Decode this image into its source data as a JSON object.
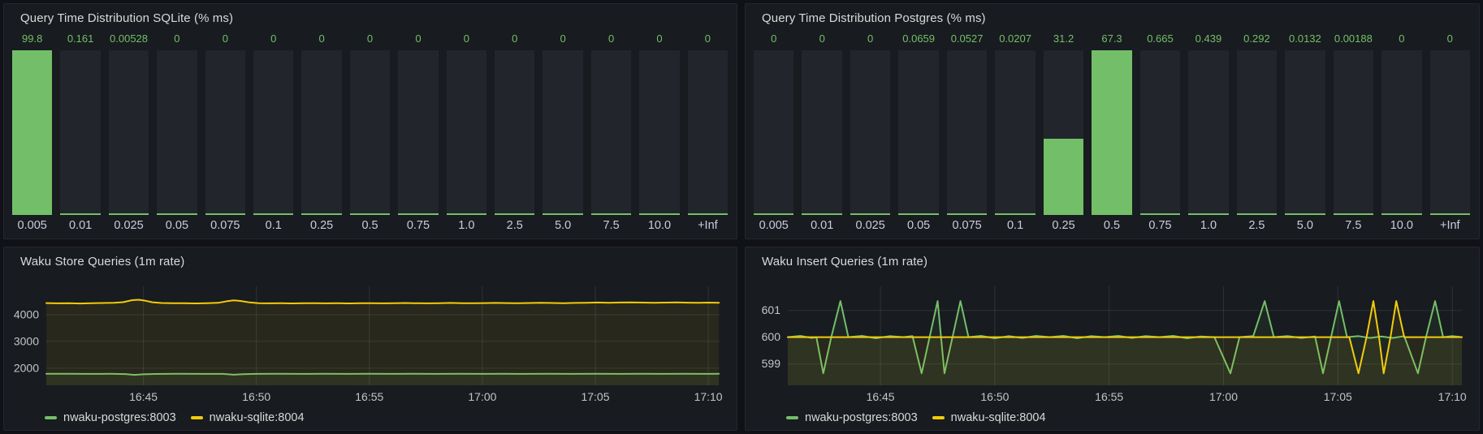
{
  "theme": {
    "page_bg": "#111217",
    "panel_bg": "#181b1f",
    "panel_border": "#25272e",
    "title_color": "#d8d9da",
    "axis_text": "#c3c4ca",
    "grid_color": "rgba(204,204,220,0.12)",
    "green": "#73bf69",
    "yellow": "#f2cc0c",
    "bar_track": "#22252b"
  },
  "chart_data": [
    {
      "type": "bar",
      "title": "Query Time Distribution SQLite (% ms)",
      "bar_color": "#73bf69",
      "scale": "relative-to-max-value",
      "categories": [
        "0.005",
        "0.01",
        "0.025",
        "0.05",
        "0.075",
        "0.1",
        "0.25",
        "0.5",
        "0.75",
        "1.0",
        "2.5",
        "5.0",
        "7.5",
        "10.0",
        "+Inf"
      ],
      "values": [
        99.8,
        0.161,
        0.00528,
        0,
        0,
        0,
        0,
        0,
        0,
        0,
        0,
        0,
        0,
        0,
        0
      ],
      "value_labels": [
        "99.8",
        "0.161",
        "0.00528",
        "0",
        "0",
        "0",
        "0",
        "0",
        "0",
        "0",
        "0",
        "0",
        "0",
        "0",
        "0"
      ]
    },
    {
      "type": "bar",
      "title": "Query Time Distribution Postgres (% ms)",
      "bar_color": "#73bf69",
      "scale": "relative-to-max-value",
      "categories": [
        "0.005",
        "0.01",
        "0.025",
        "0.05",
        "0.075",
        "0.1",
        "0.25",
        "0.5",
        "0.75",
        "1.0",
        "2.5",
        "5.0",
        "7.5",
        "10.0",
        "+Inf"
      ],
      "values": [
        0,
        0,
        0,
        0.0659,
        0.0527,
        0.0207,
        31.2,
        67.3,
        0.665,
        0.439,
        0.292,
        0.0132,
        0.00188,
        0,
        0
      ],
      "value_labels": [
        "0",
        "0",
        "0",
        "0.0659",
        "0.0527",
        "0.0207",
        "31.2",
        "67.3",
        "0.665",
        "0.439",
        "0.292",
        "0.0132",
        "0.00188",
        "0",
        "0"
      ]
    },
    {
      "type": "line",
      "title": "Waku Store Queries (1m rate)",
      "x_unit": "minutes after 16:40",
      "xlim": [
        0.7,
        30.5
      ],
      "ylim": [
        1360,
        5060
      ],
      "grid": true,
      "legend_position": "bottom-left",
      "y_ticks": [
        4000,
        3000,
        2000
      ],
      "x_ticks": [
        {
          "t": 5,
          "label": "16:45"
        },
        {
          "t": 10,
          "label": "16:50"
        },
        {
          "t": 15,
          "label": "16:55"
        },
        {
          "t": 20,
          "label": "17:00"
        },
        {
          "t": 25,
          "label": "17:05"
        },
        {
          "t": 30,
          "label": "17:10"
        }
      ],
      "series": [
        {
          "name": "nwaku-postgres:8003",
          "color": "#73bf69",
          "points": [
            [
              0.7,
              1790
            ],
            [
              1.5,
              1791
            ],
            [
              2.5,
              1789
            ],
            [
              3.5,
              1790
            ],
            [
              4.2,
              1782
            ],
            [
              4.6,
              1752
            ],
            [
              5.0,
              1772
            ],
            [
              5.5,
              1786
            ],
            [
              6.5,
              1790
            ],
            [
              7.5,
              1789
            ],
            [
              8.5,
              1787
            ],
            [
              9.0,
              1758
            ],
            [
              9.4,
              1775
            ],
            [
              10.0,
              1788
            ],
            [
              11,
              1790
            ],
            [
              12,
              1789
            ],
            [
              13,
              1790
            ],
            [
              14,
              1789
            ],
            [
              15,
              1790
            ],
            [
              16,
              1789
            ],
            [
              17,
              1790
            ],
            [
              18,
              1789
            ],
            [
              19,
              1790
            ],
            [
              20,
              1789
            ],
            [
              21,
              1790
            ],
            [
              22,
              1789
            ],
            [
              23,
              1790
            ],
            [
              24,
              1789
            ],
            [
              25,
              1790
            ],
            [
              26,
              1789
            ],
            [
              27,
              1790
            ],
            [
              28,
              1789
            ],
            [
              29,
              1790
            ],
            [
              30,
              1789
            ],
            [
              30.47,
              1790
            ]
          ]
        },
        {
          "name": "nwaku-sqlite:8004",
          "color": "#f2cc0c",
          "points": [
            [
              0.7,
              4435
            ],
            [
              1.2,
              4425
            ],
            [
              1.7,
              4432
            ],
            [
              2.2,
              4420
            ],
            [
              2.7,
              4428
            ],
            [
              3.2,
              4438
            ],
            [
              3.7,
              4448
            ],
            [
              4.1,
              4470
            ],
            [
              4.5,
              4545
            ],
            [
              4.8,
              4560
            ],
            [
              5.1,
              4520
            ],
            [
              5.4,
              4465
            ],
            [
              5.8,
              4438
            ],
            [
              6.3,
              4428
            ],
            [
              6.8,
              4432
            ],
            [
              7.3,
              4422
            ],
            [
              7.8,
              4428
            ],
            [
              8.3,
              4445
            ],
            [
              8.7,
              4505
            ],
            [
              9.0,
              4535
            ],
            [
              9.3,
              4515
            ],
            [
              9.7,
              4460
            ],
            [
              10.1,
              4432
            ],
            [
              10.6,
              4425
            ],
            [
              11.1,
              4430
            ],
            [
              11.6,
              4422
            ],
            [
              12.1,
              4428
            ],
            [
              12.6,
              4432
            ],
            [
              13.1,
              4425
            ],
            [
              13.6,
              4430
            ],
            [
              14.1,
              4422
            ],
            [
              14.6,
              4428
            ],
            [
              15.1,
              4432
            ],
            [
              15.6,
              4426
            ],
            [
              16.1,
              4432
            ],
            [
              16.6,
              4438
            ],
            [
              17.1,
              4430
            ],
            [
              17.6,
              4425
            ],
            [
              18.1,
              4432
            ],
            [
              18.6,
              4440
            ],
            [
              19.1,
              4432
            ],
            [
              19.6,
              4428
            ],
            [
              20.1,
              4435
            ],
            [
              20.6,
              4442
            ],
            [
              21.1,
              4436
            ],
            [
              21.6,
              4430
            ],
            [
              22.1,
              4438
            ],
            [
              22.6,
              4445
            ],
            [
              23.1,
              4438
            ],
            [
              23.6,
              4432
            ],
            [
              24.1,
              4440
            ],
            [
              24.6,
              4448
            ],
            [
              25.1,
              4455
            ],
            [
              25.6,
              4448
            ],
            [
              26.1,
              4455
            ],
            [
              26.6,
              4462
            ],
            [
              27.1,
              4452
            ],
            [
              27.6,
              4445
            ],
            [
              28.1,
              4452
            ],
            [
              28.6,
              4458
            ],
            [
              29.1,
              4450
            ],
            [
              29.6,
              4444
            ],
            [
              30.0,
              4452
            ],
            [
              30.47,
              4448
            ]
          ]
        }
      ]
    },
    {
      "type": "line",
      "title": "Waku Insert Queries (1m rate)",
      "x_unit": "minutes after 16:40",
      "xlim": [
        0.95,
        30.42
      ],
      "ylim": [
        598.2,
        601.9
      ],
      "grid": true,
      "legend_position": "bottom-left",
      "y_ticks": [
        601,
        600,
        599
      ],
      "x_ticks": [
        {
          "t": 5,
          "label": "16:45"
        },
        {
          "t": 10,
          "label": "16:50"
        },
        {
          "t": 15,
          "label": "16:55"
        },
        {
          "t": 20,
          "label": "17:00"
        },
        {
          "t": 25,
          "label": "17:05"
        },
        {
          "t": 30,
          "label": "17:10"
        }
      ],
      "series": [
        {
          "name": "nwaku-postgres:8003",
          "color": "#73bf69",
          "points": [
            [
              0.95,
              600
            ],
            [
              1.5,
              600.05
            ],
            [
              2.0,
              599.97
            ],
            [
              2.2,
              600
            ],
            [
              2.5,
              598.65
            ],
            [
              2.85,
              600
            ],
            [
              3.25,
              601.35
            ],
            [
              3.6,
              600
            ],
            [
              4.2,
              600.05
            ],
            [
              4.8,
              599.96
            ],
            [
              5.4,
              600.04
            ],
            [
              6.0,
              600
            ],
            [
              6.4,
              600.04
            ],
            [
              6.8,
              598.65
            ],
            [
              7.15,
              600
            ],
            [
              7.5,
              601.35
            ],
            [
              7.8,
              598.65
            ],
            [
              8.15,
              600
            ],
            [
              8.5,
              601.35
            ],
            [
              8.85,
              600
            ],
            [
              9.4,
              600.05
            ],
            [
              10.0,
              599.96
            ],
            [
              10.6,
              600.04
            ],
            [
              11.2,
              599.97
            ],
            [
              11.8,
              600.05
            ],
            [
              12.4,
              600
            ],
            [
              13.0,
              600.05
            ],
            [
              13.6,
              599.96
            ],
            [
              14.2,
              600.04
            ],
            [
              14.8,
              600
            ],
            [
              15.4,
              600.05
            ],
            [
              16.0,
              599.97
            ],
            [
              16.6,
              600.04
            ],
            [
              17.2,
              600
            ],
            [
              17.8,
              600.05
            ],
            [
              18.4,
              599.96
            ],
            [
              19.0,
              600.03
            ],
            [
              19.6,
              600
            ],
            [
              20.3,
              598.65
            ],
            [
              20.7,
              600
            ],
            [
              21.3,
              600.04
            ],
            [
              21.8,
              601.35
            ],
            [
              22.2,
              600
            ],
            [
              22.8,
              600.04
            ],
            [
              23.4,
              599.97
            ],
            [
              24.0,
              600.03
            ],
            [
              24.35,
              598.65
            ],
            [
              24.7,
              600
            ],
            [
              25.05,
              601.35
            ],
            [
              25.4,
              600
            ],
            [
              25.9,
              600.04
            ],
            [
              26.4,
              599.97
            ],
            [
              26.9,
              600.03
            ],
            [
              27.4,
              599.97
            ],
            [
              27.9,
              600.04
            ],
            [
              28.5,
              598.65
            ],
            [
              28.85,
              600
            ],
            [
              29.25,
              601.35
            ],
            [
              29.6,
              600
            ],
            [
              30.0,
              600.04
            ],
            [
              30.42,
              600
            ]
          ]
        },
        {
          "name": "nwaku-sqlite:8004",
          "color": "#f2cc0c",
          "points": [
            [
              0.95,
              600
            ],
            [
              3,
              600
            ],
            [
              6,
              600
            ],
            [
              9,
              600
            ],
            [
              12,
              600
            ],
            [
              15,
              600
            ],
            [
              18,
              600
            ],
            [
              21,
              600
            ],
            [
              24,
              600
            ],
            [
              25.5,
              600
            ],
            [
              25.9,
              598.65
            ],
            [
              26.25,
              600
            ],
            [
              26.55,
              601.35
            ],
            [
              26.8,
              600
            ],
            [
              27.0,
              598.65
            ],
            [
              27.3,
              600
            ],
            [
              27.55,
              601.35
            ],
            [
              27.9,
              600
            ],
            [
              29,
              600
            ],
            [
              30.42,
              600
            ]
          ]
        }
      ]
    }
  ]
}
